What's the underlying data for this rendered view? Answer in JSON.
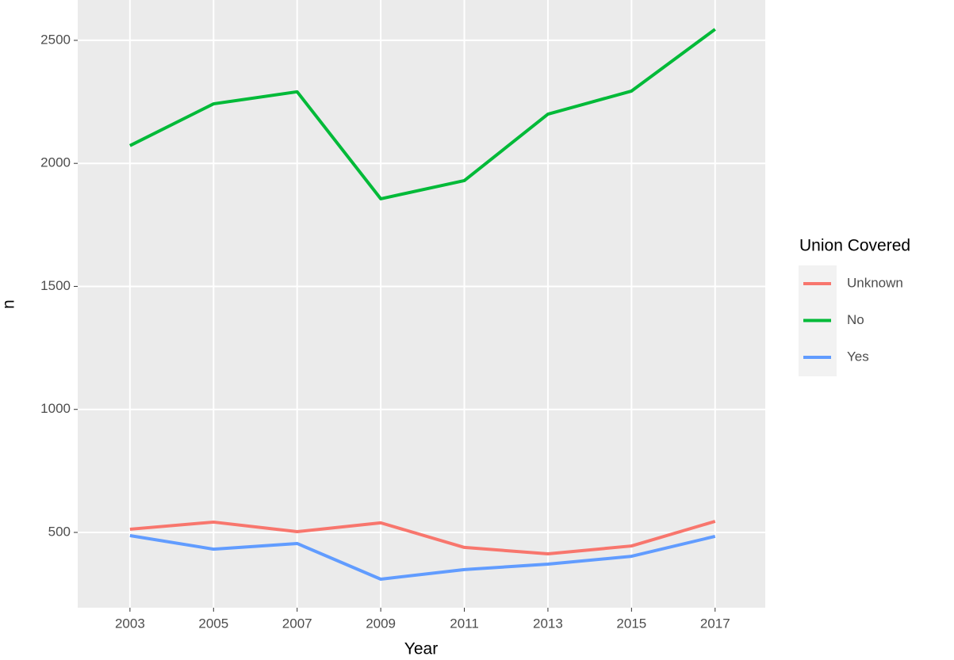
{
  "chart_data": {
    "type": "line",
    "x_label": "Year",
    "y_label": "n",
    "x": [
      2003,
      2005,
      2007,
      2009,
      2011,
      2013,
      2015,
      2017
    ],
    "series": [
      {
        "name": "Unknown",
        "color": "#F8766D",
        "values": [
          513,
          542,
          503,
          539,
          439,
          413,
          445,
          545
        ]
      },
      {
        "name": "No",
        "color": "#00BA38",
        "values": [
          2072,
          2242,
          2291,
          1856,
          1930,
          2200,
          2294,
          2545
        ]
      },
      {
        "name": "Yes",
        "color": "#619CFF",
        "values": [
          487,
          432,
          455,
          310,
          349,
          371,
          403,
          484
        ]
      }
    ],
    "legend_title": "Union Covered",
    "xlim": [
      2001.75,
      2018.2
    ],
    "ylim": [
      194,
      2664
    ],
    "xticks": [
      2003,
      2005,
      2007,
      2009,
      2011,
      2013,
      2015,
      2017
    ],
    "yticks": [
      500,
      1000,
      1500,
      2000,
      2500
    ],
    "grid": true,
    "legend_position": "right"
  }
}
